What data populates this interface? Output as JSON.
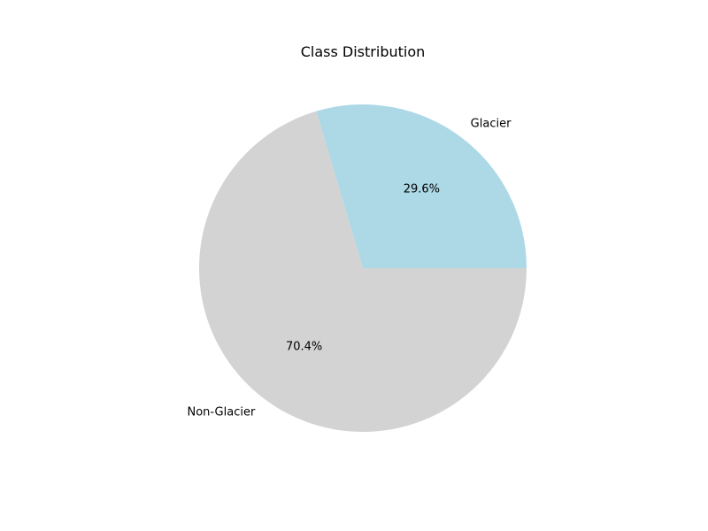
{
  "chart_data": {
    "type": "pie",
    "title": "Class Distribution",
    "labels": [
      "Glacier",
      "Non-Glacier"
    ],
    "percent_labels": [
      "29.6%",
      "70.4%"
    ],
    "values": [
      29.6,
      70.4
    ],
    "colors": [
      "#add8e6",
      "#d3d3d3"
    ],
    "start_angle_deg": 0,
    "direction": "counterclockwise",
    "legend": "none"
  }
}
